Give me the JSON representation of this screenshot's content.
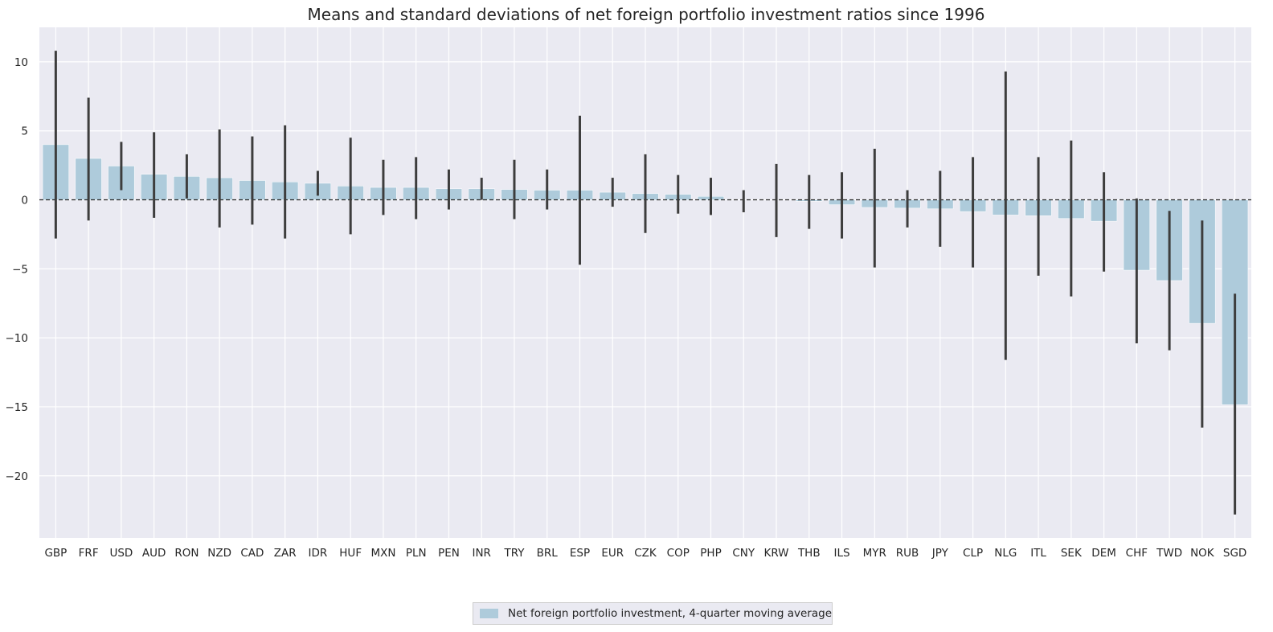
{
  "chart_data": {
    "type": "bar",
    "title": "Means and standard deviations of net foreign portfolio investment ratios since 1996",
    "xlabel": "",
    "ylabel": "",
    "ylim": [
      -24.5,
      12.5
    ],
    "yticks": [
      10,
      5,
      0,
      -5,
      -10,
      -15,
      -20
    ],
    "ytick_labels": [
      "10",
      "5",
      "0",
      "−5",
      "−10",
      "−15",
      "−20"
    ],
    "grid": true,
    "legend_position": "bottom-center",
    "categories": [
      "GBP",
      "FRF",
      "USD",
      "AUD",
      "RON",
      "NZD",
      "CAD",
      "ZAR",
      "IDR",
      "HUF",
      "MXN",
      "PLN",
      "PEN",
      "INR",
      "TRY",
      "BRL",
      "ESP",
      "EUR",
      "CZK",
      "COP",
      "PHP",
      "CNY",
      "KRW",
      "THB",
      "ILS",
      "MYR",
      "RUB",
      "JPY",
      "CLP",
      "NLG",
      "ITL",
      "SEK",
      "DEM",
      "CHF",
      "TWD",
      "NOK",
      "SGD"
    ],
    "series": [
      {
        "name": "Net foreign portfolio investment, 4-quarter moving average",
        "color": "#aecbdb",
        "values": [
          4.0,
          3.0,
          2.45,
          1.85,
          1.7,
          1.6,
          1.4,
          1.3,
          1.2,
          1.0,
          0.9,
          0.9,
          0.8,
          0.8,
          0.75,
          0.7,
          0.7,
          0.55,
          0.45,
          0.4,
          0.25,
          0.0,
          0.0,
          -0.1,
          -0.35,
          -0.55,
          -0.6,
          -0.65,
          -0.85,
          -1.1,
          -1.15,
          -1.35,
          -1.55,
          -5.1,
          -5.85,
          -8.95,
          -14.85
        ],
        "error_low": [
          -2.8,
          -1.5,
          0.7,
          -1.3,
          0.1,
          -2.0,
          -1.8,
          -2.8,
          0.3,
          -2.5,
          -1.1,
          -1.4,
          -0.7,
          0.0,
          -1.4,
          -0.7,
          -4.7,
          -0.5,
          -2.4,
          -1.0,
          -1.1,
          -0.9,
          -2.7,
          -2.1,
          -2.8,
          -4.9,
          -2.0,
          -3.4,
          -4.9,
          -11.6,
          -5.5,
          -7.0,
          -5.2,
          -10.4,
          -10.9,
          -16.5,
          -22.8
        ],
        "error_high": [
          10.8,
          7.4,
          4.2,
          4.9,
          3.3,
          5.1,
          4.6,
          5.4,
          2.1,
          4.5,
          2.9,
          3.1,
          2.2,
          1.6,
          2.9,
          2.2,
          6.1,
          1.6,
          3.3,
          1.8,
          1.6,
          0.7,
          2.6,
          1.8,
          2.0,
          3.7,
          0.7,
          2.1,
          3.1,
          9.3,
          3.1,
          4.3,
          2.0,
          0.1,
          -0.8,
          -1.5,
          -6.8
        ]
      }
    ]
  }
}
